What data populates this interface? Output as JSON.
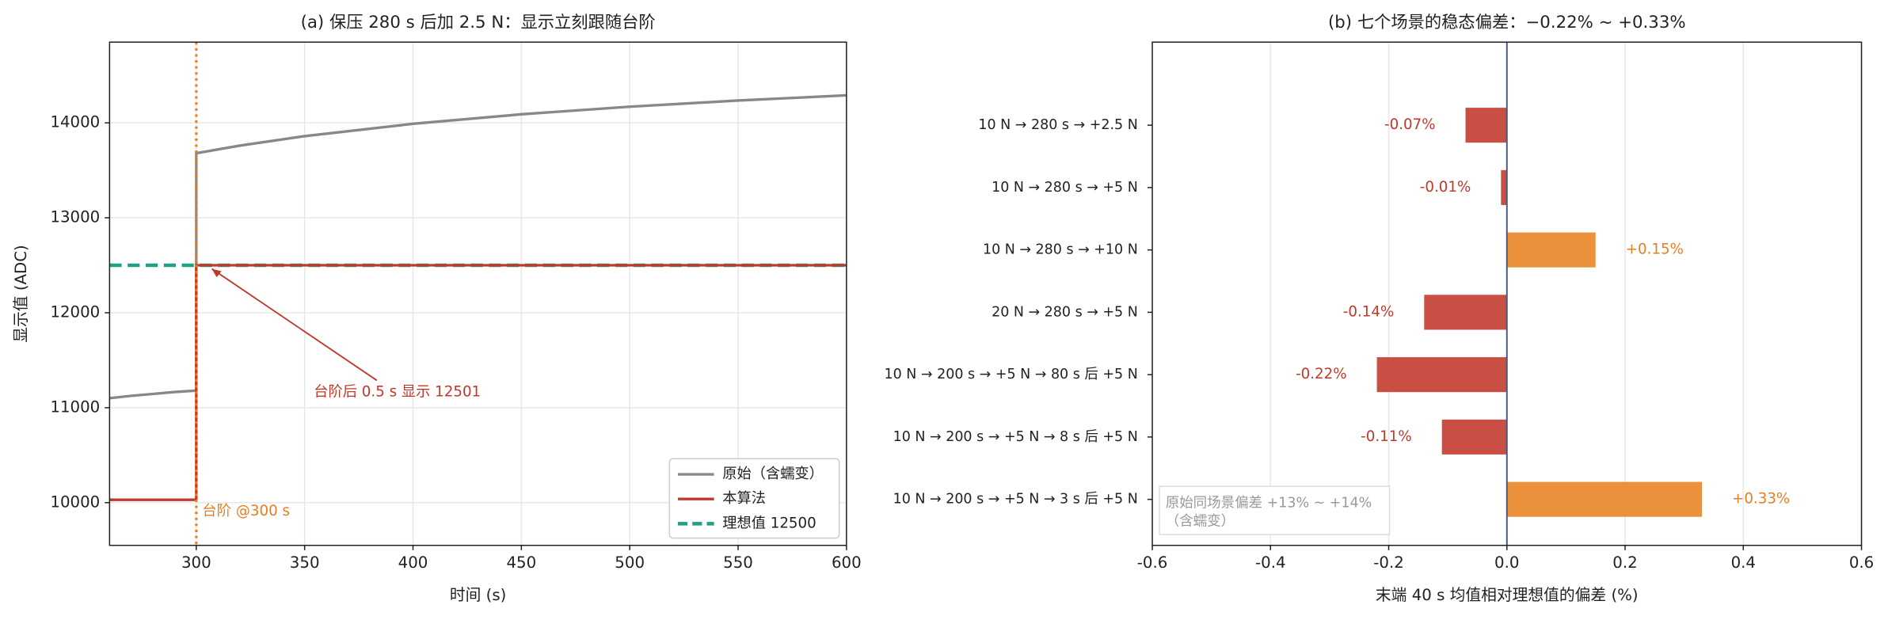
{
  "chart_data": [
    {
      "type": "line",
      "title": "(a) 保压 280 s 后加 2.5 N：显示立刻跟随台阶",
      "x_label": "时间 (s)",
      "y_label": "显示值 (ADC)",
      "xlim": [
        260,
        600
      ],
      "ylim": [
        9550,
        14850
      ],
      "xticks": [
        300,
        350,
        400,
        450,
        500,
        550,
        600
      ],
      "yticks": [
        10000,
        11000,
        12000,
        13000,
        14000
      ],
      "grid": true,
      "legend": "lower right",
      "series": [
        {
          "name": "原始（含蠕变）",
          "color": "#888888",
          "style": "solid",
          "x": [
            260,
            270,
            280,
            290,
            300,
            300,
            320,
            350,
            400,
            450,
            500,
            550,
            600
          ],
          "values": [
            11100,
            11125,
            11145,
            11165,
            11180,
            13680,
            13760,
            13860,
            13990,
            14090,
            14170,
            14235,
            14290
          ]
        },
        {
          "name": "本算法",
          "color": "#c0392b",
          "style": "solid",
          "x": [
            260,
            300,
            300,
            600
          ],
          "values": [
            10030,
            10030,
            12500,
            12500
          ]
        },
        {
          "name": "理想值 12500",
          "color": "#1fa187",
          "style": "dashed",
          "x": [
            260,
            600
          ],
          "values": [
            12500,
            12500
          ]
        }
      ],
      "vline": {
        "x": 300,
        "color": "#e67e22",
        "label": "台阶 @300 s"
      },
      "annotation": {
        "text": "台阶后 0.5 s 显示 12501",
        "x": 300.5,
        "y": 12501,
        "color": "#c0392b"
      }
    },
    {
      "type": "barh",
      "title": "(b) 七个场景的稳态偏差：−0.22% ~ +0.33%",
      "x_label": "末端 40 s 均值相对理想值的偏差 (%)",
      "categories": [
        "10 N → 280 s → +2.5 N",
        "10 N → 280 s → +5 N",
        "10 N → 280 s → +10 N",
        "20 N → 280 s → +5 N",
        "10 N → 200 s → +5 N → 80 s 后 +5 N",
        "10 N → 200 s → +5 N → 8 s 后 +5 N",
        "10 N → 200 s → +5 N → 3 s 后 +5 N"
      ],
      "values": [
        -0.07,
        -0.01,
        0.15,
        -0.14,
        -0.22,
        -0.11,
        0.33
      ],
      "value_labels": [
        "-0.07%",
        "-0.01%",
        "+0.15%",
        "-0.14%",
        "-0.22%",
        "-0.11%",
        "+0.33%"
      ],
      "colors": [
        "#c94f44",
        "#c94f44",
        "#eb913b",
        "#c94f44",
        "#c94f44",
        "#c94f44",
        "#eb913b"
      ],
      "label_colors": [
        "#c0392b",
        "#c0392b",
        "#e67e22",
        "#c0392b",
        "#c0392b",
        "#c0392b",
        "#e67e22"
      ],
      "xlim": [
        -0.6,
        0.6
      ],
      "xticks": [
        -0.6,
        -0.4,
        -0.2,
        {
          "value": 0,
          "label": "0.0"
        },
        0.2,
        0.4,
        0.6
      ],
      "grid": true,
      "note": [
        "原始同场景偏差 +13% ~ +14%",
        "（含蠕变）"
      ]
    }
  ]
}
